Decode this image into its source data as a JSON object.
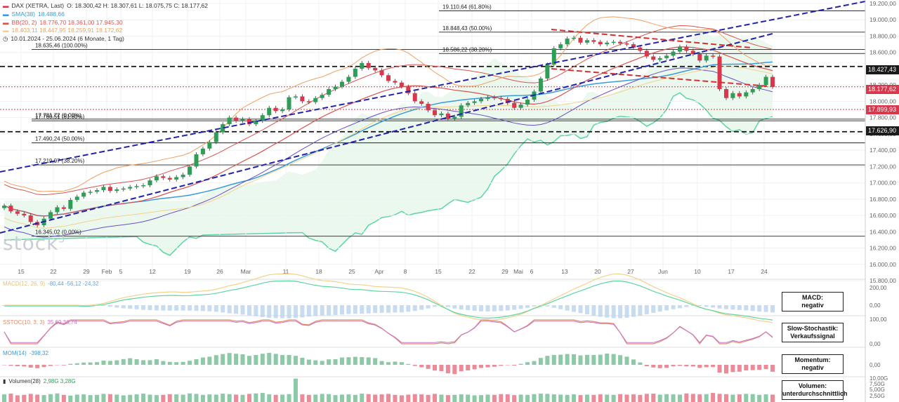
{
  "header": {
    "main_title": "DAX (XETRA, Last)",
    "ohlc": "O: 18.300,42  H: 18.307,61  L: 18.075,75  C: 18.177,62",
    "sma_label": "SMA(38)",
    "sma_value": "18.488,66",
    "bb_label": "BB(20, 2)",
    "bb_values": "18.776,70  18.361,00  17.945,30",
    "ichimoku_values": "18.403,11  18.447,95  18.259,91  18.172,62",
    "range": "10.01.2024 - 25.06.2024  (6 Monate, 1 Tag)"
  },
  "watermark": "stock",
  "watermark_sup": "3",
  "price_tags": {
    "upper_dashed": "18.427,43",
    "close": "18.177,62",
    "red_dotted": "17.899,93",
    "lower_dashed": "17.626,90"
  },
  "info_boxes": {
    "macd": [
      "MACD:",
      "negativ"
    ],
    "stoch": [
      "Slow-Stochastik:",
      "Verkaufssignal"
    ],
    "mom": [
      "Momentum:",
      "negativ"
    ],
    "vol": [
      "Volumen:",
      "unterdurchschnittlich"
    ]
  },
  "panels": {
    "macd_label": "MACD(12, 26, 9)",
    "macd_values": "-80,44  -56,12  -24,32",
    "stoch_label": "SSTOC(10, 3, 3)",
    "stoch_values": "35,69  36,74",
    "mom_label": "MOM(14)",
    "mom_value": "-398,32",
    "vol_label": "Volumen(28)",
    "vol_values": "2,98G  3,28G"
  },
  "colors": {
    "up": "#2e9e57",
    "down": "#d9374b",
    "trend_blue": "#2222aa",
    "trend_red": "#d62f2f",
    "bb": "#d9534f",
    "sma": "#3a9bd9",
    "ichimoku_fill": "#e6f6ea",
    "ichimoku_line": "#5bd6a0",
    "purple": "#6a4fc4",
    "orange": "#f0a060",
    "yellow": "#f2d28a"
  },
  "chart_data": {
    "type": "candlestick",
    "y_range": [
      15800,
      19200
    ],
    "y_ticks": [
      "15.800,00",
      "16.000,00",
      "16.200,00",
      "16.400,00",
      "16.600,00",
      "16.800,00",
      "17.000,00",
      "17.200,00",
      "17.400,00",
      "17.600,00",
      "17.800,00",
      "18.000,00",
      "18.200,00",
      "18.400,00",
      "18.600,00",
      "18.800,00",
      "19.000,00",
      "19.200,00"
    ],
    "x_ticks": [
      "15",
      "22",
      "29",
      "Feb",
      "5",
      "12",
      "19",
      "26",
      "Mar",
      "11",
      "18",
      "25",
      "Apr",
      "8",
      "15",
      "22",
      "29",
      "Mai",
      "6",
      "13",
      "20",
      "27",
      "Jun",
      "10",
      "17",
      "24"
    ],
    "fib_levels": [
      {
        "label": "19.110,64 (61.80%)",
        "value": 19110.64
      },
      {
        "label": "18.848,43 (50.00%)",
        "value": 18848.43
      },
      {
        "label": "18.635,46 (100.00%)",
        "value": 18635.46
      },
      {
        "label": "18.586,22 (38.20%)",
        "value": 18586.22
      },
      {
        "label": "17.760,51 (61.80%)",
        "value": 17760.51
      },
      {
        "label": "17.490,24 (50.00%)",
        "value": 17490.24
      },
      {
        "label": "17.219,97 (38.20%)",
        "value": 17219.97
      },
      {
        "label": "17.781,72 (0.00%)",
        "value": 17781.72
      },
      {
        "label": "16.345,02 (0.00%)",
        "value": 16345.02
      }
    ],
    "horizontal_levels": [
      18427.43,
      17626.9
    ],
    "red_levels": [
      18177.62,
      17899.93
    ],
    "macd_ticks": [
      "200,00",
      "0,00"
    ],
    "stoch_ticks": [
      "100,00",
      "0,00"
    ],
    "mom_ticks": [
      "0,00"
    ],
    "vol_ticks": [
      "10,00G",
      "7,50G",
      "5,00G",
      "2,50G"
    ],
    "close_series": [
      16720,
      16650,
      16620,
      16600,
      16520,
      16480,
      16560,
      16640,
      16700,
      16680,
      16790,
      16830,
      16880,
      16890,
      16910,
      16950,
      16900,
      16920,
      16930,
      16950,
      16960,
      16970,
      17030,
      17080,
      17060,
      17040,
      17070,
      17100,
      17200,
      17350,
      17420,
      17500,
      17620,
      17720,
      17800,
      17760,
      17780,
      17720,
      17760,
      17830,
      17920,
      17880,
      17900,
      18050,
      18060,
      18000,
      17990,
      18040,
      18080,
      18150,
      18180,
      18240,
      18300,
      18400,
      18470,
      18410,
      18380,
      18320,
      18250,
      18230,
      18180,
      18100,
      18000,
      17970,
      17890,
      17830,
      17850,
      17790,
      17810,
      17950,
      17980,
      18000,
      18030,
      18050,
      18040,
      18030,
      17980,
      17920,
      17960,
      18020,
      18120,
      18280,
      18450,
      18650,
      18700,
      18770,
      18780,
      18720,
      18750,
      18730,
      18700,
      18720,
      18730,
      18710,
      18700,
      18660,
      18620,
      18550,
      18510,
      18530,
      18560,
      18610,
      18670,
      18620,
      18580,
      18500,
      18560,
      18550,
      18150,
      18040,
      18100,
      18060,
      18110,
      18150,
      18200,
      18300,
      18177
    ],
    "volume_series": [
      3.2,
      3.5,
      2.8,
      3.0,
      3.4,
      3.1,
      2.9,
      3.3,
      3.6,
      3.0,
      2.7,
      3.1,
      3.2,
      2.9,
      3.0,
      3.4,
      3.3,
      3.1,
      2.8,
      3.0,
      3.2,
      3.5,
      3.1,
      2.9,
      3.0,
      3.3,
      3.2,
      3.1,
      3.6,
      3.4,
      3.0,
      3.2,
      3.1,
      3.5,
      3.3,
      3.1,
      3.0,
      3.4,
      3.6,
      3.8,
      3.2,
      3.0,
      3.1,
      3.3,
      9.8,
      3.2,
      3.0,
      3.1,
      3.4,
      3.3,
      2.9,
      3.1,
      3.2,
      3.0,
      3.5,
      3.3,
      3.1,
      3.2,
      3.4,
      3.0,
      2.8,
      3.1,
      3.3,
      3.2,
      3.0,
      3.4,
      3.1,
      2.9,
      3.0,
      3.2,
      3.1,
      2.8,
      2.9,
      3.1,
      3.0,
      3.3,
      3.2,
      2.9,
      3.1,
      3.0,
      3.3,
      3.5,
      3.4,
      3.2,
      3.1,
      3.0,
      3.2,
      2.9,
      3.1,
      3.0,
      3.2,
      3.1,
      3.0,
      3.3,
      3.1,
      3.2,
      3.0,
      3.4,
      3.5,
      3.1,
      3.3,
      3.2,
      3.1,
      3.6,
      3.4,
      3.2,
      3.3,
      3.8,
      3.4,
      3.3,
      3.1,
      3.2,
      3.4,
      3.3,
      3.0,
      3.2,
      3.1
    ],
    "ylabel": "",
    "xlabel": "",
    "grid": true
  }
}
